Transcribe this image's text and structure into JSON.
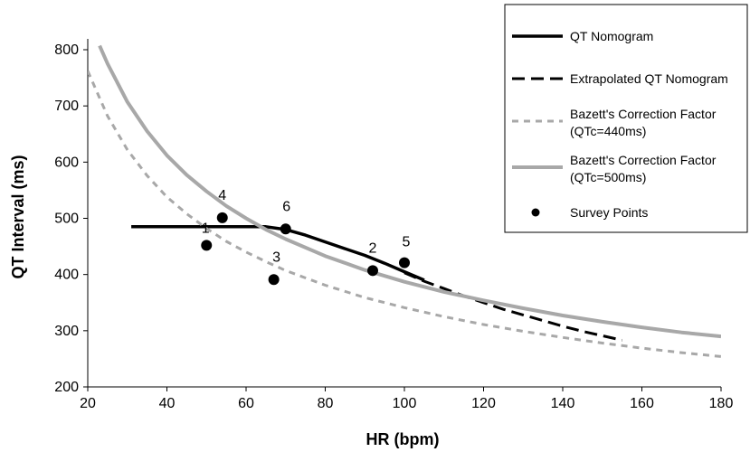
{
  "chart_data": {
    "type": "line",
    "xlabel": "HR (bpm)",
    "ylabel": "QT Interval (ms)",
    "xlim": [
      20,
      180
    ],
    "ylim": [
      200,
      800
    ],
    "x_ticks": [
      "20",
      "40",
      "60",
      "80",
      "100",
      "120",
      "140",
      "160",
      "180"
    ],
    "y_ticks": [
      "200",
      "300",
      "400",
      "500",
      "600",
      "700",
      "800"
    ],
    "grid": false,
    "legend_position": "top-right",
    "series": [
      {
        "name": "QT Nomogram",
        "style": "solid",
        "color": "#000000",
        "x": [
          31,
          40,
          50,
          60,
          65,
          70,
          75,
          80,
          85,
          90,
          95,
          100,
          105
        ],
        "y": [
          485,
          485,
          485,
          485,
          485,
          480,
          470,
          458,
          446,
          434,
          420,
          405,
          390
        ]
      },
      {
        "name": "Extrapolated QT Nomogram",
        "style": "dashed",
        "color": "#000000",
        "x": [
          100,
          105,
          110,
          115,
          120,
          125,
          130,
          135,
          140,
          145,
          150,
          155
        ],
        "y": [
          403,
          388,
          375,
          362,
          350,
          338,
          328,
          318,
          308,
          299,
          291,
          283
        ]
      },
      {
        "name": "Bazett's Correction Factor (QTc=440ms)",
        "style": "dotted",
        "color": "#a8a8a8",
        "x": [
          20,
          25,
          30,
          35,
          40,
          45,
          50,
          55,
          60,
          65,
          70,
          80,
          90,
          100,
          110,
          120,
          130,
          140,
          150,
          160,
          170,
          180
        ],
        "y": [
          762,
          682,
          622,
          576,
          538,
          508,
          482,
          459,
          440,
          423,
          407,
          381,
          359,
          341,
          325,
          311,
          299,
          288,
          278,
          269,
          261,
          254
        ]
      },
      {
        "name": "Bazett's Correction Factor (QTc=500ms)",
        "style": "solid",
        "color": "#a8a8a8",
        "x": [
          23,
          25,
          30,
          35,
          40,
          45,
          50,
          55,
          60,
          65,
          70,
          80,
          90,
          100,
          110,
          120,
          130,
          140,
          150,
          160,
          170,
          180
        ],
        "y": [
          807,
          775,
          707,
          655,
          612,
          577,
          548,
          522,
          500,
          480,
          463,
          433,
          408,
          387,
          369,
          354,
          340,
          327,
          316,
          306,
          297,
          290
        ]
      }
    ],
    "points": {
      "name": "Survey Points",
      "x": [
        50,
        92,
        67,
        54,
        100,
        70
      ],
      "y": [
        452,
        407,
        391,
        501,
        421,
        481
      ],
      "labels": [
        "1",
        "2",
        "3",
        "4",
        "5",
        "6"
      ]
    },
    "legend": [
      {
        "label": "QT Nomogram",
        "style": "solid",
        "color": "#000000"
      },
      {
        "label": "Extrapolated QT Nomogram",
        "style": "dashed",
        "color": "#000000"
      },
      {
        "label": "Bazett's Correction Factor",
        "label2": "(QTc=440ms)",
        "style": "dotted",
        "color": "#a8a8a8"
      },
      {
        "label": "Bazett's Correction Factor",
        "label2": "(QTc=500ms)",
        "style": "solid",
        "color": "#a8a8a8"
      },
      {
        "label": "Survey Points",
        "style": "marker",
        "color": "#000000"
      }
    ]
  }
}
